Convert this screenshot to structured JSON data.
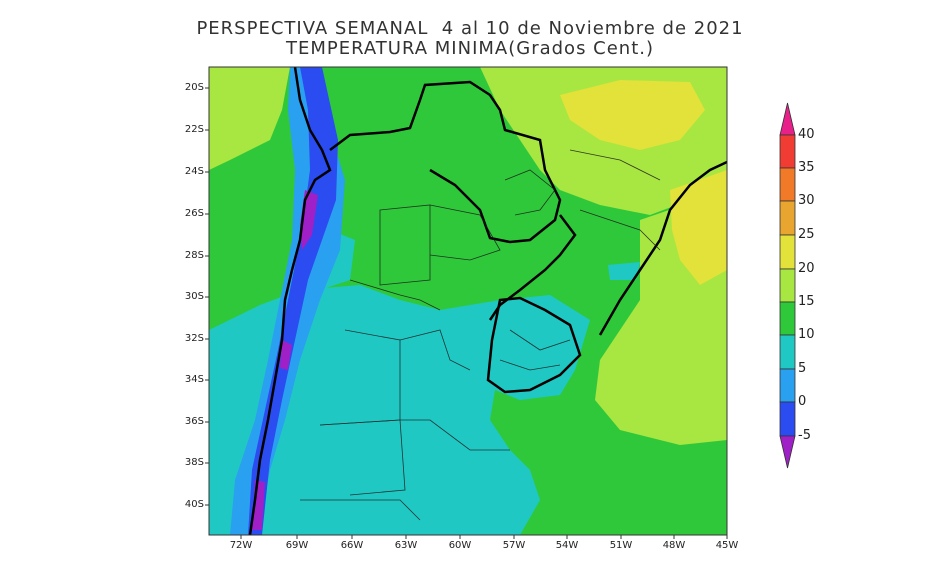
{
  "title": "PERSPECTIVA SEMANAL  4 al 10 de Noviembre de 2021",
  "subtitle": "TEMPERATURA MINIMA(Grados Cent.)",
  "lat_labels": [
    "20S",
    "22S",
    "24S",
    "26S",
    "28S",
    "30S",
    "32S",
    "34S",
    "36S",
    "38S",
    "40S"
  ],
  "lon_labels": [
    "72W",
    "69W",
    "66W",
    "63W",
    "60W",
    "57W",
    "54W",
    "51W",
    "48W",
    "45W"
  ],
  "colorbar": {
    "labels": [
      "40",
      "35",
      "30",
      "25",
      "20",
      "15",
      "10",
      "5",
      "0",
      "-5"
    ],
    "colors": {
      "above_40": "#e8208a",
      "35_40": "#f03c32",
      "30_35": "#f07a28",
      "25_30": "#e8a530",
      "20_25": "#e2e23a",
      "15_20": "#a8e641",
      "10_15": "#2fc83a",
      "5_10": "#20c8c4",
      "0_5": "#2aa0f0",
      "m5_0": "#2a4cf0",
      "below_m5": "#a020c8"
    }
  }
}
